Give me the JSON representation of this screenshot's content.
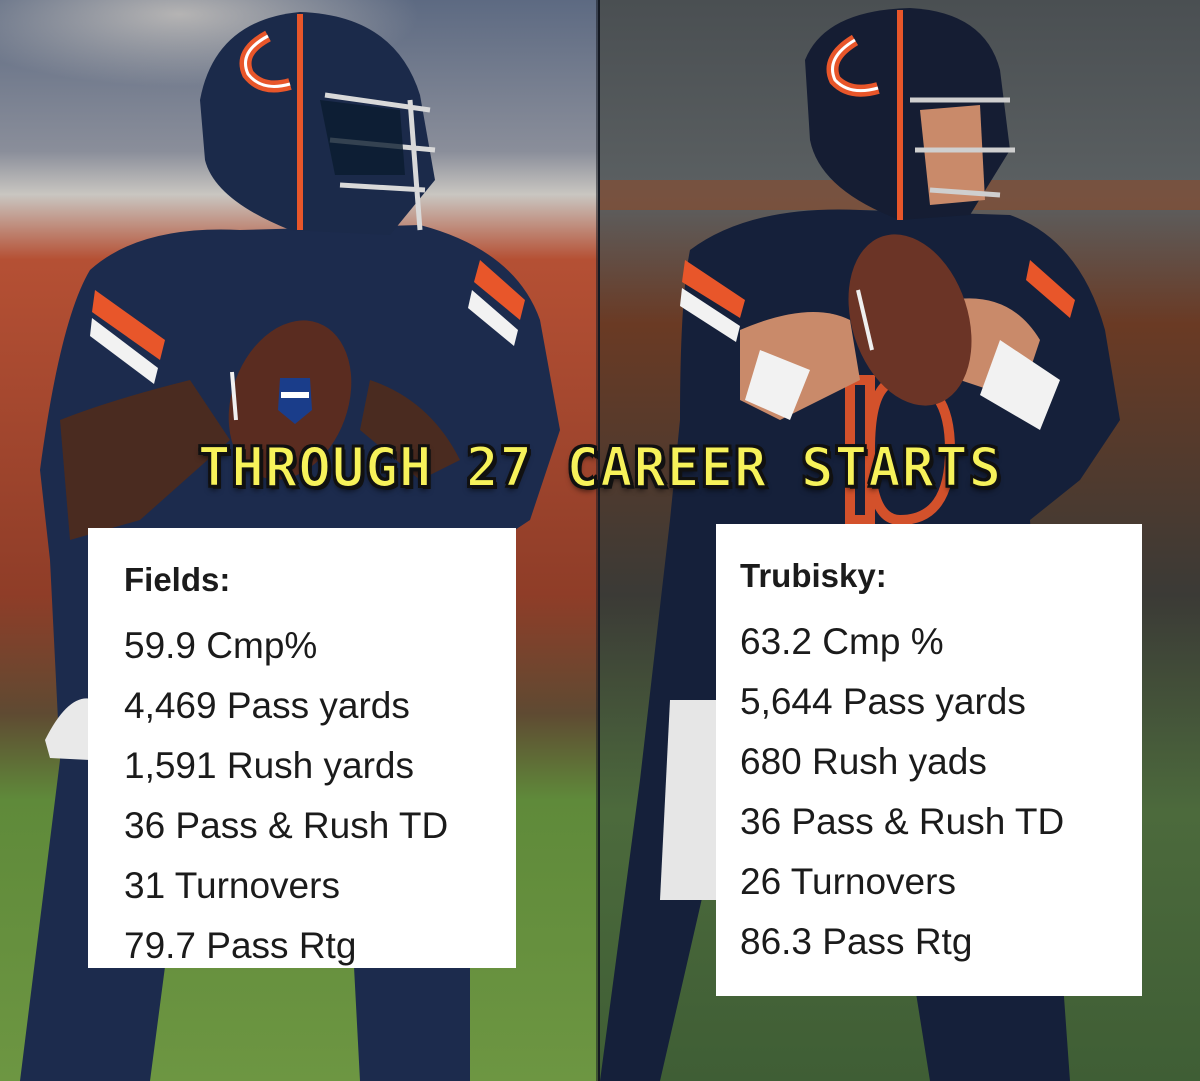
{
  "headline": "THROUGH 27 CAREER STARTS",
  "players": [
    {
      "name": "Fields:",
      "stats": [
        "59.9 Cmp%",
        "4,469 Pass yards",
        "1,591 Rush yards",
        "36 Pass & Rush TD",
        "31 Turnovers",
        "79.7 Pass Rtg"
      ]
    },
    {
      "name": "Trubisky:",
      "stats": [
        "63.2 Cmp %",
        "5,644 Pass yards",
        "680 Rush yads",
        "36 Pass & Rush TD",
        "26 Turnovers",
        "86.3 Pass Rtg"
      ]
    }
  ],
  "colors": {
    "headline_fill": "#f7f25a",
    "headline_outline": "#111111",
    "card_bg": "#ffffff",
    "card_text": "#1b1b1b",
    "bears_navy": "#1b2a4a",
    "bears_orange": "#e8562a",
    "field_green": "#5f8a3a"
  },
  "icons": [
    "bears-c-logo-icon",
    "nfl-shield-icon",
    "football-icon"
  ]
}
